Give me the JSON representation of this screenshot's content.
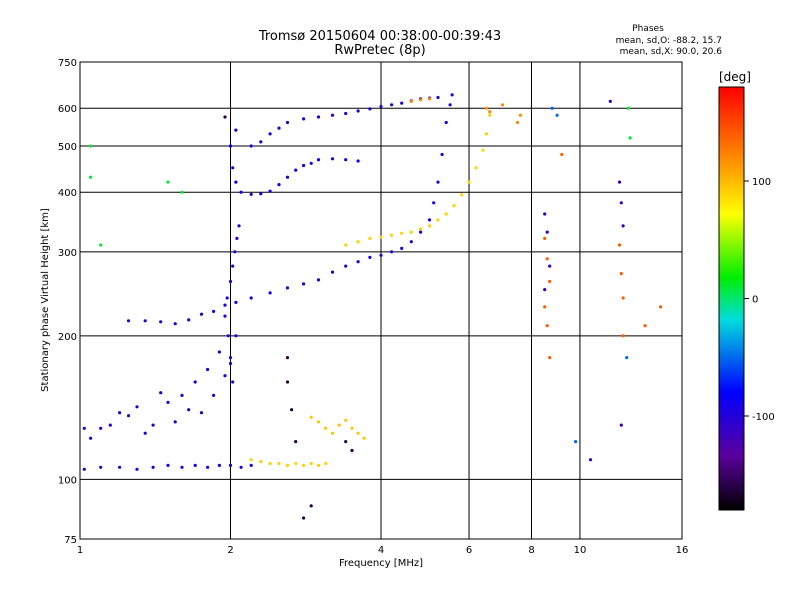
{
  "header": {
    "title": "Tromsø 20150604 00:38:00-00:39:43",
    "subtitle": "RwPretec (8p)",
    "stats_title": "Phases",
    "stats_o": "mean, sd,O: -88.2, 15.7",
    "stats_x": "mean, sd,X:  90.0, 20.6"
  },
  "chart_data": {
    "type": "scatter",
    "title": "Tromsø 20150604 00:38:00-00:39:43",
    "subtitle": "RwPretec (8p)",
    "xlabel": "Frequency [MHz]",
    "ylabel": "Stationary phase Virtual Height [km]",
    "x_scale": "log",
    "y_scale": "log",
    "xlim": [
      1,
      16
    ],
    "ylim": [
      75,
      750
    ],
    "x_ticks": [
      1,
      2,
      4,
      6,
      8,
      10,
      16
    ],
    "y_ticks": [
      75,
      100,
      200,
      300,
      400,
      500,
      600,
      750
    ],
    "grid": true,
    "colorbar": {
      "label": "[deg]",
      "range": [
        -180,
        180
      ],
      "ticks": [
        100,
        0,
        -100
      ]
    },
    "series": [
      {
        "phase": -95,
        "points": [
          [
            1.02,
            105
          ],
          [
            1.1,
            106
          ],
          [
            1.2,
            106
          ],
          [
            1.3,
            105
          ],
          [
            1.4,
            106
          ],
          [
            1.5,
            107
          ],
          [
            1.6,
            106
          ],
          [
            1.7,
            107
          ],
          [
            1.8,
            106
          ],
          [
            1.9,
            107
          ],
          [
            2.0,
            107
          ],
          [
            2.1,
            106
          ],
          [
            2.2,
            107
          ]
        ]
      },
      {
        "phase": -100,
        "points": [
          [
            1.02,
            128
          ],
          [
            1.05,
            122
          ],
          [
            1.1,
            128
          ],
          [
            1.15,
            130
          ],
          [
            1.2,
            138
          ],
          [
            1.25,
            136
          ],
          [
            1.3,
            142
          ],
          [
            1.35,
            125
          ],
          [
            1.4,
            130
          ],
          [
            1.45,
            152
          ],
          [
            1.5,
            145
          ],
          [
            1.55,
            132
          ],
          [
            1.6,
            150
          ],
          [
            1.65,
            140
          ],
          [
            1.7,
            160
          ],
          [
            1.75,
            138
          ],
          [
            1.8,
            170
          ],
          [
            1.85,
            150
          ],
          [
            1.9,
            185
          ],
          [
            1.95,
            165
          ],
          [
            2.0,
            175
          ],
          [
            2.05,
            200
          ]
        ]
      },
      {
        "phase": -100,
        "points": [
          [
            1.25,
            215
          ],
          [
            1.35,
            215
          ],
          [
            1.45,
            214
          ],
          [
            1.55,
            212
          ],
          [
            1.65,
            216
          ],
          [
            1.75,
            222
          ],
          [
            1.85,
            225
          ],
          [
            1.95,
            232
          ],
          [
            2.05,
            235
          ],
          [
            2.2,
            240
          ],
          [
            2.4,
            246
          ],
          [
            2.6,
            252
          ],
          [
            2.8,
            257
          ],
          [
            3.0,
            262
          ],
          [
            3.2,
            272
          ],
          [
            3.4,
            280
          ],
          [
            3.6,
            286
          ],
          [
            3.8,
            292
          ],
          [
            4.0,
            295
          ],
          [
            4.2,
            300
          ],
          [
            4.4,
            305
          ],
          [
            4.6,
            315
          ],
          [
            4.8,
            330
          ],
          [
            5.0,
            350
          ],
          [
            5.1,
            380
          ],
          [
            5.2,
            420
          ],
          [
            5.3,
            480
          ],
          [
            5.4,
            560
          ],
          [
            5.5,
            610
          ],
          [
            5.55,
            640
          ]
        ]
      },
      {
        "phase": -90,
        "points": [
          [
            2.05,
            540
          ],
          [
            2.0,
            500
          ],
          [
            2.02,
            450
          ],
          [
            2.05,
            420
          ],
          [
            2.1,
            400
          ],
          [
            2.2,
            396
          ],
          [
            2.3,
            397
          ],
          [
            2.4,
            402
          ],
          [
            2.5,
            415
          ],
          [
            2.6,
            430
          ],
          [
            2.7,
            445
          ],
          [
            2.8,
            455
          ],
          [
            2.9,
            460
          ],
          [
            3.0,
            468
          ],
          [
            3.2,
            470
          ],
          [
            3.4,
            468
          ],
          [
            3.6,
            465
          ]
        ]
      },
      {
        "phase": -100,
        "points": [
          [
            2.2,
            500
          ],
          [
            2.3,
            510
          ],
          [
            2.4,
            530
          ],
          [
            2.5,
            545
          ],
          [
            2.6,
            560
          ],
          [
            2.8,
            570
          ],
          [
            3.0,
            575
          ],
          [
            3.2,
            580
          ],
          [
            3.4,
            585
          ],
          [
            3.6,
            592
          ],
          [
            3.8,
            598
          ],
          [
            4.0,
            605
          ],
          [
            4.2,
            610
          ],
          [
            4.4,
            615
          ],
          [
            4.6,
            622
          ],
          [
            4.8,
            628
          ],
          [
            5.0,
            630
          ],
          [
            5.2,
            632
          ]
        ]
      },
      {
        "phase": -105,
        "points": [
          [
            1.95,
            220
          ],
          [
            1.97,
            240
          ],
          [
            2.0,
            260
          ],
          [
            2.02,
            280
          ],
          [
            2.04,
            300
          ],
          [
            2.06,
            320
          ],
          [
            2.08,
            340
          ],
          [
            1.98,
            200
          ],
          [
            2.0,
            180
          ],
          [
            2.02,
            160
          ]
        ]
      },
      {
        "phase": 90,
        "points": [
          [
            2.2,
            110
          ],
          [
            2.3,
            109
          ],
          [
            2.4,
            108
          ],
          [
            2.5,
            108
          ],
          [
            2.6,
            107
          ],
          [
            2.7,
            108
          ],
          [
            2.8,
            107
          ],
          [
            2.9,
            108
          ],
          [
            3.0,
            107
          ],
          [
            3.1,
            108
          ]
        ]
      },
      {
        "phase": 95,
        "points": [
          [
            2.9,
            135
          ],
          [
            3.0,
            132
          ],
          [
            3.1,
            128
          ],
          [
            3.2,
            125
          ],
          [
            3.3,
            130
          ],
          [
            3.4,
            133
          ],
          [
            3.5,
            128
          ],
          [
            3.6,
            125
          ],
          [
            3.7,
            122
          ]
        ]
      },
      {
        "phase": 90,
        "points": [
          [
            3.4,
            310
          ],
          [
            3.6,
            315
          ],
          [
            3.8,
            320
          ],
          [
            4.0,
            322
          ],
          [
            4.2,
            325
          ],
          [
            4.4,
            328
          ],
          [
            4.6,
            330
          ],
          [
            4.8,
            335
          ],
          [
            5.0,
            340
          ],
          [
            5.2,
            350
          ],
          [
            5.4,
            360
          ],
          [
            5.6,
            375
          ],
          [
            5.8,
            395
          ],
          [
            6.0,
            420
          ],
          [
            6.2,
            450
          ],
          [
            6.4,
            490
          ],
          [
            6.5,
            530
          ],
          [
            6.6,
            580
          ]
        ]
      },
      {
        "phase": 120,
        "points": [
          [
            4.6,
            620
          ],
          [
            4.8,
            625
          ],
          [
            5.0,
            628
          ],
          [
            6.5,
            600
          ],
          [
            6.6,
            590
          ],
          [
            7.0,
            610
          ],
          [
            7.5,
            560
          ],
          [
            7.6,
            580
          ]
        ]
      },
      {
        "phase": 140,
        "points": [
          [
            8.5,
            320
          ],
          [
            8.6,
            290
          ],
          [
            8.7,
            260
          ],
          [
            8.5,
            230
          ],
          [
            8.6,
            210
          ],
          [
            8.7,
            180
          ],
          [
            9.2,
            480
          ],
          [
            12.0,
            310
          ],
          [
            12.1,
            270
          ],
          [
            12.2,
            240
          ],
          [
            12.2,
            200
          ],
          [
            13.5,
            210
          ],
          [
            14.5,
            230
          ]
        ]
      },
      {
        "phase": -110,
        "points": [
          [
            8.5,
            360
          ],
          [
            8.6,
            330
          ],
          [
            8.7,
            280
          ],
          [
            8.5,
            250
          ],
          [
            12.0,
            420
          ],
          [
            12.1,
            380
          ],
          [
            12.2,
            340
          ],
          [
            12.1,
            130
          ],
          [
            10.5,
            110
          ],
          [
            11.5,
            620
          ]
        ]
      },
      {
        "phase": 10,
        "points": [
          [
            1.05,
            500
          ],
          [
            1.05,
            430
          ],
          [
            1.1,
            310
          ],
          [
            1.5,
            420
          ],
          [
            1.6,
            400
          ],
          [
            12.5,
            600
          ],
          [
            12.6,
            520
          ]
        ]
      },
      {
        "phase": -50,
        "points": [
          [
            8.8,
            600
          ],
          [
            9.0,
            580
          ],
          [
            12.4,
            180
          ],
          [
            9.8,
            120
          ]
        ]
      },
      {
        "phase": -160,
        "points": [
          [
            2.6,
            180
          ],
          [
            2.6,
            160
          ],
          [
            2.65,
            140
          ],
          [
            2.7,
            120
          ],
          [
            3.4,
            120
          ],
          [
            3.5,
            115
          ],
          [
            2.8,
            83
          ],
          [
            2.9,
            88
          ],
          [
            1.95,
            575
          ]
        ]
      }
    ]
  }
}
